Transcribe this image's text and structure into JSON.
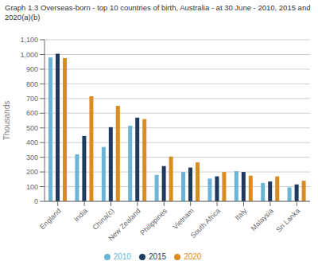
{
  "chart_data": {
    "type": "bar",
    "title": "Graph 1.3 Overseas-born - top 10 countries of birth, Australia - at 30 June - 2010, 2015 and\n2020(a)(b)",
    "ylabel": "Thousands",
    "categories": [
      "England",
      "India",
      "China(c)",
      "New Zealand",
      "Philippines",
      "Vietnam",
      "South Africa",
      "Italy",
      "Malaysia",
      "Sri Lanka"
    ],
    "series": [
      {
        "name": "2010",
        "color": "#6ab4d8",
        "values": [
          980,
          320,
          370,
          515,
          180,
          200,
          155,
          205,
          125,
          95
        ]
      },
      {
        "name": "2015",
        "color": "#1e3a5f",
        "values": [
          1005,
          445,
          505,
          570,
          240,
          230,
          170,
          200,
          135,
          115
        ]
      },
      {
        "name": "2020",
        "color": "#d98c20",
        "values": [
          975,
          715,
          650,
          560,
          305,
          265,
          200,
          175,
          170,
          140
        ]
      }
    ],
    "ylim": [
      0,
      1100
    ],
    "yticks": [
      0,
      100,
      200,
      300,
      400,
      500,
      600,
      700,
      800,
      900,
      {
        "value": 1000,
        "label": "1,000"
      },
      {
        "value": 1100,
        "label": "1,100"
      }
    ],
    "grid": true,
    "legend": "bottom"
  }
}
